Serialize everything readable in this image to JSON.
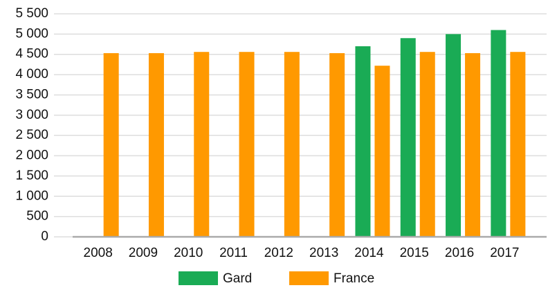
{
  "chart_data": {
    "type": "bar",
    "categories": [
      "2008",
      "2009",
      "2010",
      "2011",
      "2012",
      "2013",
      "2014",
      "2015",
      "2016",
      "2017"
    ],
    "series": [
      {
        "name": "Gard",
        "color": "#1aab55",
        "values": [
          null,
          null,
          null,
          null,
          null,
          null,
          4700,
          4900,
          5000,
          5100
        ]
      },
      {
        "name": "France",
        "color": "#ff9900",
        "values": [
          4530,
          4530,
          4560,
          4560,
          4560,
          4530,
          4220,
          4560,
          4530,
          4560
        ]
      }
    ],
    "ylim": [
      0,
      5500
    ],
    "yticks": [
      0,
      500,
      {
        "value": 1000,
        "label": "1 000"
      },
      {
        "value": 1500,
        "label": "1 500"
      },
      {
        "value": 2000,
        "label": "2 000"
      },
      {
        "value": 2500,
        "label": "2 500"
      },
      {
        "value": 3000,
        "label": "3 000"
      },
      {
        "value": 3500,
        "label": "3 500"
      },
      {
        "value": 4000,
        "label": "4 000"
      },
      {
        "value": 4500,
        "label": "4 500"
      },
      {
        "value": 5000,
        "label": "5 000"
      },
      {
        "value": 5500,
        "label": "5 500"
      }
    ],
    "grid": true,
    "legend": "bottom"
  }
}
